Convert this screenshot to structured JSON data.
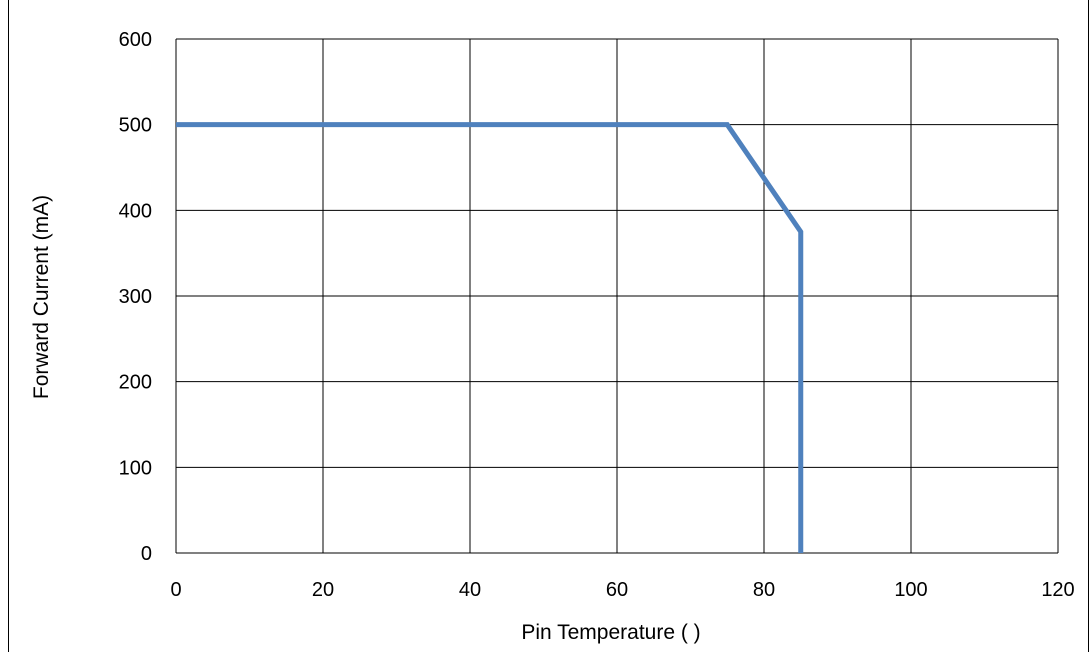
{
  "chart_data": {
    "type": "line",
    "title": "",
    "xlabel": "Pin Temperature (   )",
    "ylabel": "Forward Current (mA)",
    "xlim": [
      0,
      120
    ],
    "ylim": [
      0,
      600
    ],
    "xticks": [
      0,
      20,
      40,
      60,
      80,
      100,
      120
    ],
    "yticks": [
      0,
      100,
      200,
      300,
      400,
      500,
      600
    ],
    "grid": true,
    "legend": "none",
    "series": [
      {
        "color": "#4f81bd",
        "x": [
          0,
          75,
          85,
          85
        ],
        "y": [
          500,
          500,
          375,
          0
        ]
      }
    ]
  }
}
